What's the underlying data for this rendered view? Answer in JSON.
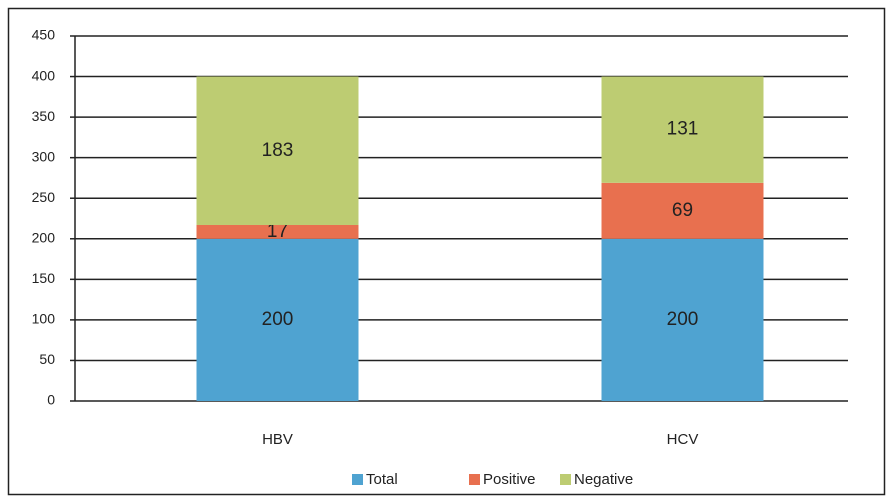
{
  "chart_data": {
    "type": "stacked_bar",
    "categories": [
      "HBV",
      "HCV"
    ],
    "series": [
      {
        "name": "Total",
        "color": "#4fa3d1",
        "values": [
          200,
          200
        ]
      },
      {
        "name": "Positive",
        "color": "#e8704f",
        "values": [
          17,
          69
        ]
      },
      {
        "name": "Negative",
        "color": "#bdcc72",
        "values": [
          183,
          131
        ]
      }
    ],
    "ylim": [
      0,
      450
    ],
    "yticks": [
      0,
      50,
      100,
      150,
      200,
      250,
      300,
      350,
      400,
      450
    ],
    "grid": true,
    "legend": "bottom"
  }
}
